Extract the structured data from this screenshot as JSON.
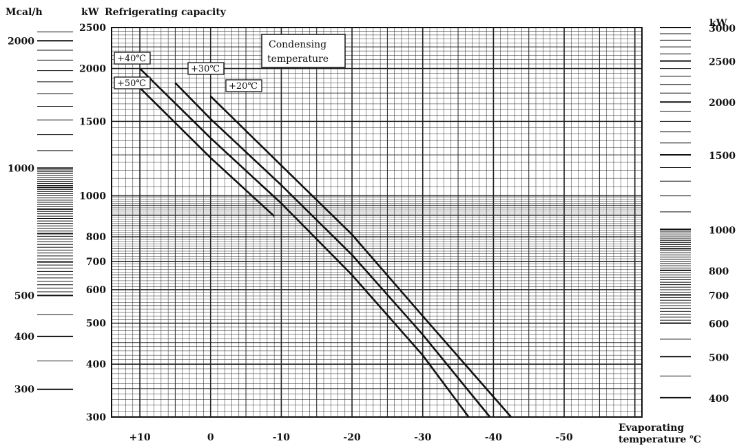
{
  "chart_data": {
    "type": "line",
    "title": "Refrigerating capacity",
    "ylabel_unit": "kW",
    "left_unit": "Mcal/h",
    "right_unit": "kW",
    "xlabel": [
      "Evaporating",
      "temperature ℃"
    ],
    "legend_title": [
      "Condensing",
      "temperature"
    ],
    "x_range": [
      14,
      -61
    ],
    "x_ticks": [
      {
        "v": 10,
        "label": "+10"
      },
      {
        "v": 0,
        "label": "0"
      },
      {
        "v": -10,
        "label": "-10"
      },
      {
        "v": -20,
        "label": "-20"
      },
      {
        "v": -30,
        "label": "-30"
      },
      {
        "v": -40,
        "label": "-40"
      },
      {
        "v": -50,
        "label": "-50"
      }
    ],
    "y_scale": "log",
    "ylim": [
      300,
      2500
    ],
    "y_ticks": [
      "300",
      "400",
      "500",
      "600",
      "700",
      "800",
      "1000",
      "1500",
      "2000",
      "2500"
    ],
    "left_ticks": [
      "300",
      "400",
      "500",
      "1000",
      "2000"
    ],
    "right_ticks": [
      "400",
      "500",
      "600",
      "700",
      "800",
      "1000",
      "1500",
      "2000",
      "2500",
      "3000"
    ],
    "series": [
      {
        "name": "+50℃",
        "x": [
          10,
          0,
          -9
        ],
        "y": [
          1800,
          1230,
          895
        ]
      },
      {
        "name": "+40℃",
        "x": [
          10,
          0,
          -10,
          -20,
          -30,
          -36.5
        ],
        "y": [
          2000,
          1370,
          960,
          650,
          420,
          300
        ]
      },
      {
        "name": "+30℃",
        "x": [
          5,
          0,
          -10,
          -20,
          -30,
          -39.5
        ],
        "y": [
          1850,
          1520,
          1060,
          725,
          470,
          300
        ]
      },
      {
        "name": "+20℃",
        "x": [
          0,
          -10,
          -20,
          -30,
          -42.5
        ],
        "y": [
          1720,
          1180,
          810,
          520,
          300
        ]
      }
    ]
  }
}
